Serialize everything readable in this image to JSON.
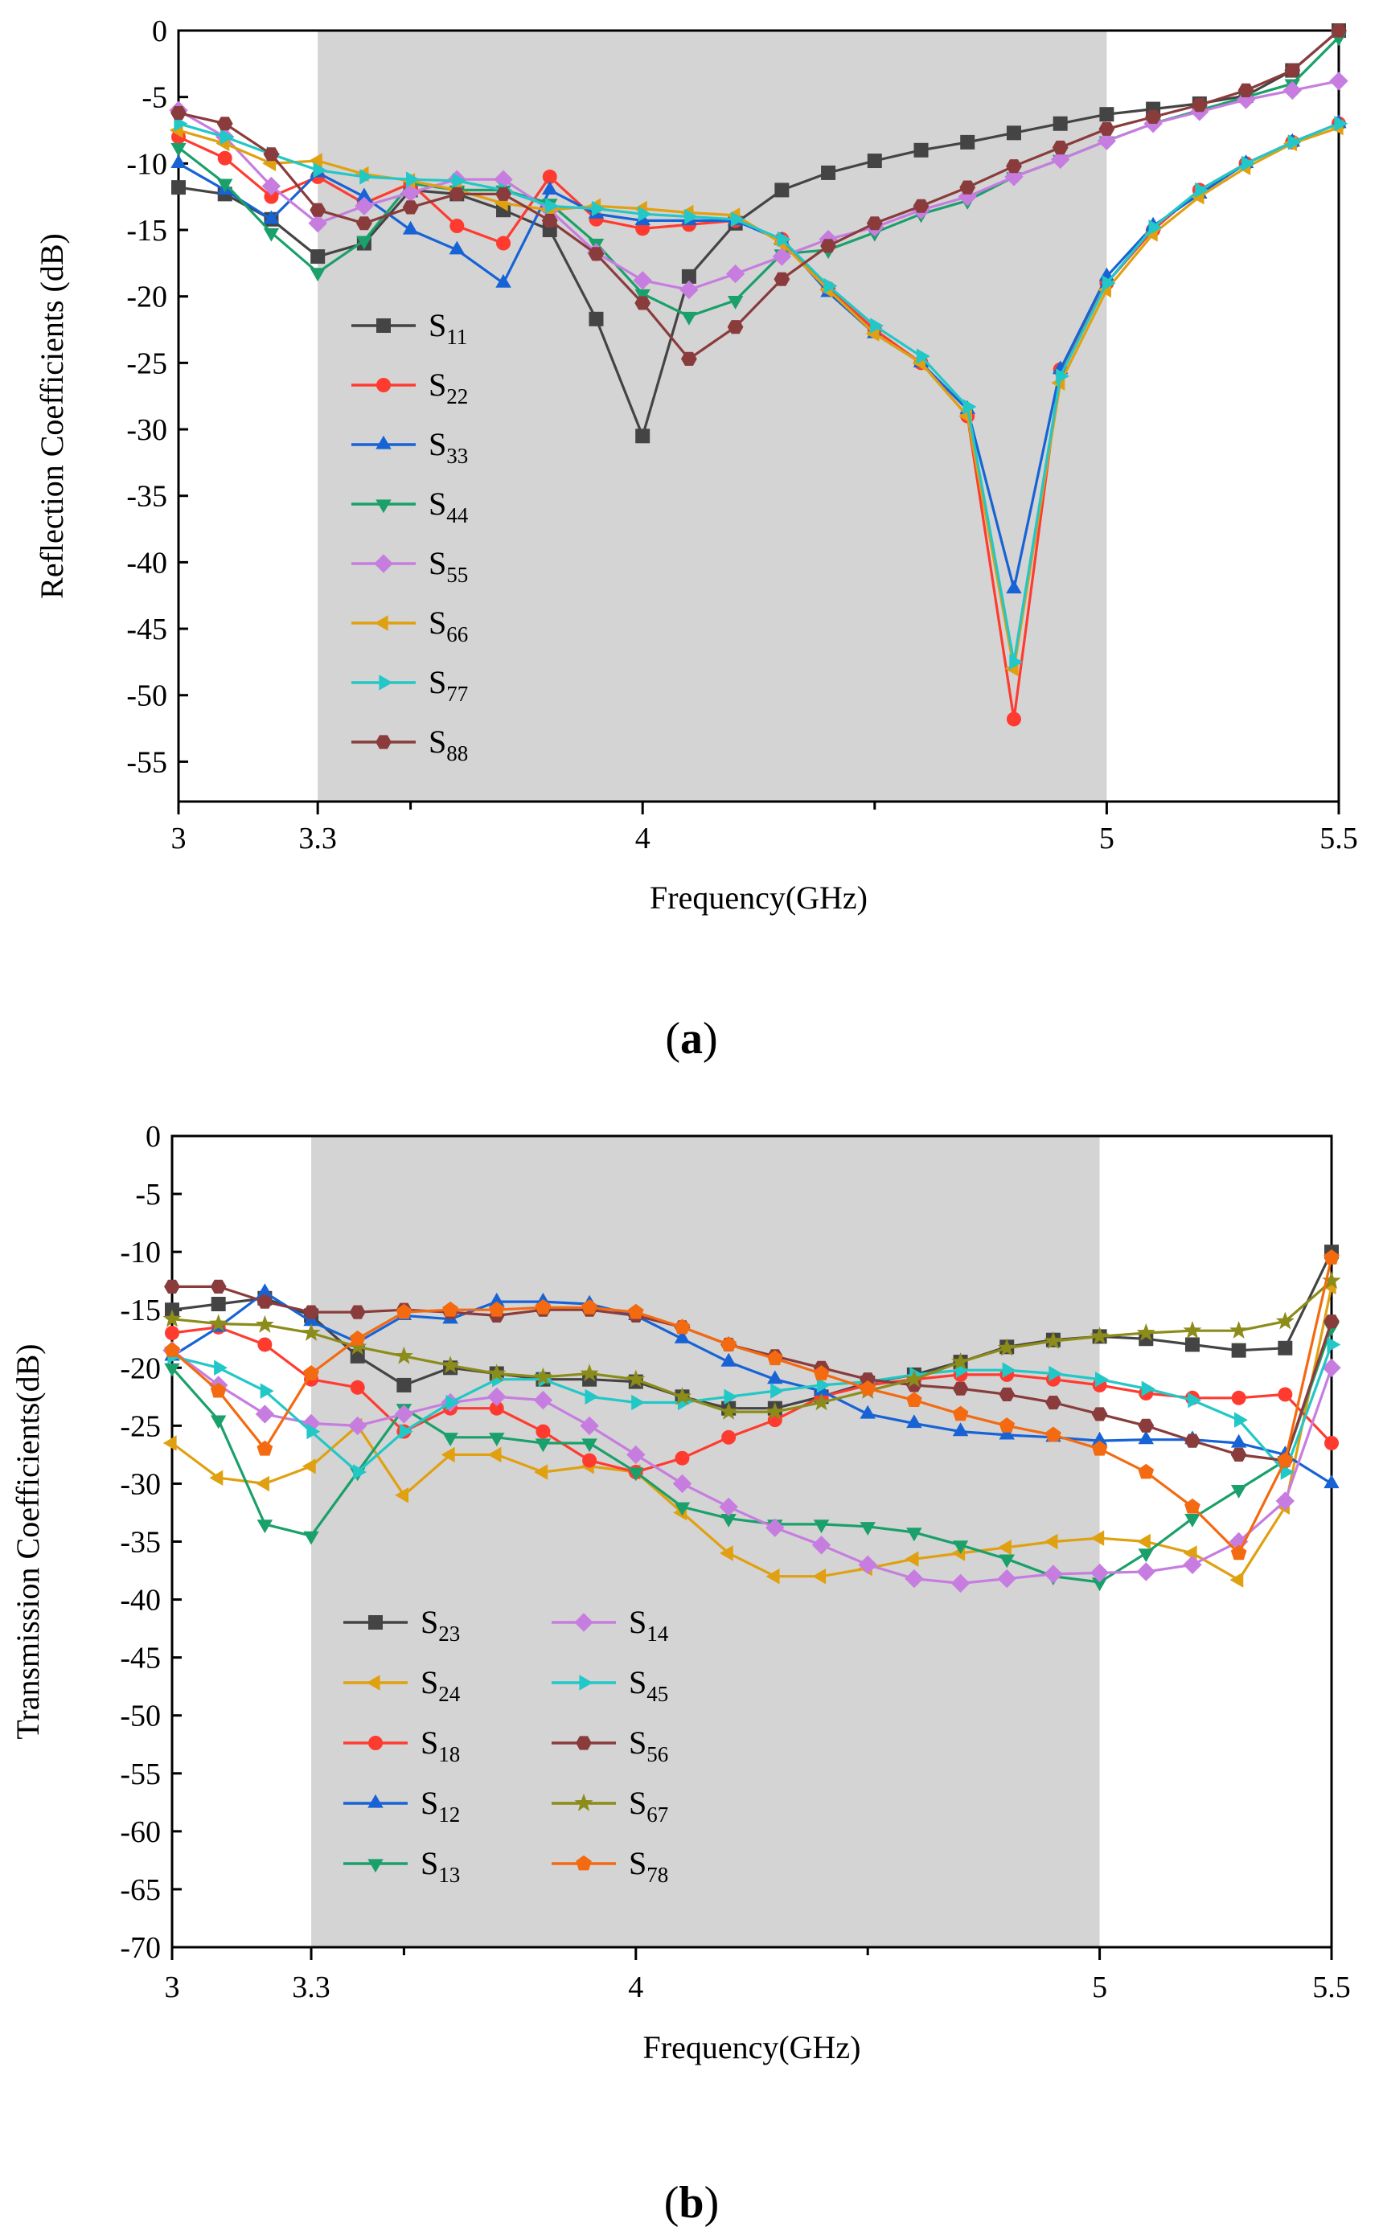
{
  "figure": {
    "caption_a": {
      "open": "(",
      "letter": "a",
      "close": ")"
    },
    "caption_b": {
      "open": "(",
      "letter": "b",
      "close": ")"
    }
  },
  "chart_data": [
    {
      "id": "a",
      "type": "line",
      "xlabel": "Frequency(GHz)",
      "ylabel": "Reflection Coefficients (dB)",
      "xlim": [
        3,
        5.5
      ],
      "ylim": [
        -58,
        0
      ],
      "xticks": [
        3,
        3.3,
        4,
        5,
        5.5
      ],
      "xtick_labels": [
        "3",
        "3.3",
        "4",
        "5",
        "5.5"
      ],
      "minor_xticks": [
        3.5,
        4.5
      ],
      "yticks": [
        0,
        -5,
        -10,
        -15,
        -20,
        -25,
        -30,
        -35,
        -40,
        -45,
        -50,
        -55
      ],
      "ytick_labels": [
        "0",
        "-5",
        "-10",
        "-15",
        "-20",
        "-25",
        "-30",
        "-35",
        "-40",
        "-45",
        "-50",
        "-55"
      ],
      "shaded_band": [
        3.3,
        5
      ],
      "shade_color": "#d4d4d4",
      "legend": {
        "columns": 1
      },
      "x": [
        3.0,
        3.1,
        3.2,
        3.3,
        3.4,
        3.5,
        3.6,
        3.7,
        3.8,
        3.9,
        4.0,
        4.1,
        4.2,
        4.3,
        4.4,
        4.5,
        4.6,
        4.7,
        4.8,
        4.9,
        5.0,
        5.1,
        5.2,
        5.3,
        5.4,
        5.5
      ],
      "series": [
        {
          "name": "S",
          "sub": "11",
          "marker": "square",
          "color": "#444444",
          "values": [
            -11.8,
            -12.3,
            -14.2,
            -17.0,
            -16.0,
            -12.0,
            -12.3,
            -13.5,
            -15.0,
            -21.7,
            -30.5,
            -18.5,
            -14.5,
            -12.0,
            -10.7,
            -9.8,
            -9.0,
            -8.4,
            -7.7,
            -7.0,
            -6.3,
            -5.9,
            -5.5,
            -4.9,
            -3.0,
            0.0
          ]
        },
        {
          "name": "S",
          "sub": "22",
          "marker": "circle",
          "color": "#ff3b30",
          "values": [
            -8.0,
            -9.6,
            -12.5,
            -11.0,
            -13.0,
            -11.5,
            -14.7,
            -16.0,
            -11.0,
            -14.2,
            -14.9,
            -14.6,
            -14.3,
            -15.7,
            -19.4,
            -22.5,
            -25.0,
            -29.0,
            -51.8,
            -25.5,
            -19.0,
            -15.0,
            -12.0,
            -10.0,
            -8.4,
            -7.0
          ]
        },
        {
          "name": "S",
          "sub": "33",
          "marker": "triangle-up",
          "color": "#1763d6",
          "values": [
            -10.0,
            -12.0,
            -14.2,
            -10.7,
            -12.5,
            -15.0,
            -16.5,
            -19.0,
            -12.0,
            -13.8,
            -14.3,
            -14.3,
            -14.3,
            -15.8,
            -19.7,
            -22.8,
            -25.0,
            -28.5,
            -42.0,
            -25.5,
            -18.5,
            -14.7,
            -12.3,
            -10.0,
            -8.4,
            -7.0
          ]
        },
        {
          "name": "S",
          "sub": "44",
          "marker": "triangle-down",
          "color": "#1aa06a",
          "values": [
            -8.8,
            -11.5,
            -15.2,
            -18.2,
            -15.8,
            -11.5,
            -12.0,
            -12.0,
            -13.0,
            -16.0,
            -19.8,
            -21.5,
            -20.3,
            -16.8,
            -16.5,
            -15.2,
            -13.8,
            -12.8,
            -11.0,
            -9.7,
            -8.3,
            -7.0,
            -6.0,
            -5.0,
            -4.0,
            -0.5
          ]
        },
        {
          "name": "S",
          "sub": "55",
          "marker": "diamond",
          "color": "#c77de0",
          "values": [
            -6.0,
            -8.0,
            -11.7,
            -14.5,
            -13.2,
            -12.2,
            -11.2,
            -11.2,
            -13.5,
            -16.7,
            -18.8,
            -19.5,
            -18.3,
            -17.0,
            -15.7,
            -14.8,
            -13.5,
            -12.5,
            -11.0,
            -9.7,
            -8.3,
            -7.0,
            -6.1,
            -5.2,
            -4.5,
            -3.8
          ]
        },
        {
          "name": "S",
          "sub": "66",
          "marker": "triangle-left",
          "color": "#e0a010",
          "values": [
            -7.5,
            -8.5,
            -10.0,
            -9.8,
            -10.8,
            -11.3,
            -12.0,
            -13.0,
            -13.5,
            -13.2,
            -13.4,
            -13.7,
            -13.9,
            -16.0,
            -19.5,
            -22.8,
            -25.0,
            -29.0,
            -48.0,
            -26.5,
            -19.5,
            -15.3,
            -12.5,
            -10.3,
            -8.5,
            -7.3
          ]
        },
        {
          "name": "S",
          "sub": "77",
          "marker": "triangle-right",
          "color": "#22c7c7",
          "values": [
            -7.0,
            -8.0,
            -9.3,
            -10.5,
            -11.0,
            -11.2,
            -11.3,
            -12.0,
            -13.2,
            -13.4,
            -13.8,
            -14.0,
            -14.2,
            -15.7,
            -19.2,
            -22.2,
            -24.5,
            -28.3,
            -47.5,
            -26.0,
            -19.0,
            -14.8,
            -12.0,
            -10.0,
            -8.4,
            -7.0
          ]
        },
        {
          "name": "S",
          "sub": "88",
          "marker": "hexagon",
          "color": "#8a3c3c",
          "values": [
            -6.2,
            -7.0,
            -9.3,
            -13.5,
            -14.5,
            -13.3,
            -12.3,
            -12.3,
            -14.3,
            -16.8,
            -20.5,
            -24.7,
            -22.3,
            -18.7,
            -16.2,
            -14.5,
            -13.2,
            -11.8,
            -10.2,
            -8.8,
            -7.4,
            -6.5,
            -5.6,
            -4.5,
            -3.0,
            0.0
          ]
        }
      ]
    },
    {
      "id": "b",
      "type": "line",
      "xlabel": "Frequency(GHz)",
      "ylabel": "Transmission Coefficients(dB)",
      "xlim": [
        3,
        5.5
      ],
      "ylim": [
        -70,
        0
      ],
      "xticks": [
        3,
        3.3,
        4,
        5,
        5.5
      ],
      "xtick_labels": [
        "3",
        "3.3",
        "4",
        "5",
        "5.5"
      ],
      "minor_xticks": [
        3.5,
        4.5
      ],
      "yticks": [
        0,
        -5,
        -10,
        -15,
        -20,
        -25,
        -30,
        -35,
        -40,
        -45,
        -50,
        -55,
        -60,
        -65,
        -70
      ],
      "ytick_labels": [
        "0",
        "-5",
        "-10",
        "-15",
        "-20",
        "-25",
        "-30",
        "-35",
        "-40",
        "-45",
        "-50",
        "-55",
        "-60",
        "-65",
        "-70"
      ],
      "shaded_band": [
        3.3,
        5
      ],
      "shade_color": "#d4d4d4",
      "legend": {
        "columns": 2
      },
      "x": [
        3.0,
        3.1,
        3.2,
        3.3,
        3.4,
        3.5,
        3.6,
        3.7,
        3.8,
        3.9,
        4.0,
        4.1,
        4.2,
        4.3,
        4.4,
        4.5,
        4.6,
        4.7,
        4.8,
        4.9,
        5.0,
        5.1,
        5.2,
        5.3,
        5.4,
        5.5
      ],
      "series": [
        {
          "name": "S",
          "sub": "23",
          "marker": "square",
          "color": "#444444",
          "values": [
            -15.0,
            -14.5,
            -14.0,
            -15.5,
            -19.0,
            -21.5,
            -20.0,
            -20.5,
            -21.0,
            -21.0,
            -21.2,
            -22.5,
            -23.5,
            -23.5,
            -22.5,
            -21.3,
            -20.6,
            -19.5,
            -18.2,
            -17.6,
            -17.3,
            -17.5,
            -18.0,
            -18.5,
            -18.3,
            -10.0
          ]
        },
        {
          "name": "S",
          "sub": "24",
          "marker": "triangle-left",
          "color": "#e0a010",
          "values": [
            -26.5,
            -29.5,
            -30.0,
            -28.5,
            -25.0,
            -31.0,
            -27.5,
            -27.5,
            -29.0,
            -28.5,
            -29.0,
            -32.5,
            -36.0,
            -38.0,
            -38.0,
            -37.3,
            -36.5,
            -36.0,
            -35.5,
            -35.0,
            -34.7,
            -35.0,
            -36.0,
            -38.3,
            -32.0,
            -13.0
          ]
        },
        {
          "name": "S",
          "sub": "18",
          "marker": "circle",
          "color": "#ff3b30",
          "values": [
            -17.0,
            -16.5,
            -18.0,
            -21.0,
            -21.7,
            -25.5,
            -23.5,
            -23.5,
            -25.5,
            -28.0,
            -29.0,
            -27.8,
            -26.0,
            -24.5,
            -22.5,
            -21.5,
            -21.0,
            -20.6,
            -20.6,
            -21.0,
            -21.5,
            -22.2,
            -22.6,
            -22.6,
            -22.3,
            -26.5
          ]
        },
        {
          "name": "S",
          "sub": "12",
          "marker": "triangle-up",
          "color": "#1763d6",
          "values": [
            -19.0,
            -16.5,
            -13.5,
            -16.0,
            -17.8,
            -15.5,
            -15.8,
            -14.3,
            -14.3,
            -14.5,
            -15.5,
            -17.5,
            -19.5,
            -21.0,
            -22.0,
            -24.0,
            -24.8,
            -25.5,
            -25.8,
            -26.0,
            -26.3,
            -26.2,
            -26.2,
            -26.5,
            -27.5,
            -30.0
          ]
        },
        {
          "name": "S",
          "sub": "13",
          "marker": "triangle-down",
          "color": "#1aa06a",
          "values": [
            -20.0,
            -24.5,
            -33.5,
            -34.5,
            -29.0,
            -23.5,
            -26.0,
            -26.0,
            -26.5,
            -26.5,
            -29.0,
            -32.0,
            -33.0,
            -33.5,
            -33.5,
            -33.7,
            -34.2,
            -35.3,
            -36.5,
            -38.0,
            -38.5,
            -36.0,
            -33.0,
            -30.5,
            -28.0,
            -16.5
          ]
        },
        {
          "name": "S",
          "sub": "14",
          "marker": "diamond",
          "color": "#c77de0",
          "values": [
            -18.5,
            -21.5,
            -24.0,
            -24.8,
            -25.0,
            -24.0,
            -23.0,
            -22.5,
            -22.8,
            -25.0,
            -27.5,
            -30.0,
            -32.0,
            -33.8,
            -35.3,
            -37.0,
            -38.2,
            -38.6,
            -38.2,
            -37.8,
            -37.7,
            -37.6,
            -37.0,
            -35.0,
            -31.5,
            -20.0
          ]
        },
        {
          "name": "S",
          "sub": "45",
          "marker": "triangle-right",
          "color": "#22c7c7",
          "values": [
            -19.0,
            -20.0,
            -22.0,
            -25.5,
            -29.0,
            -25.5,
            -23.0,
            -21.0,
            -21.0,
            -22.5,
            -23.0,
            -23.0,
            -22.5,
            -22.0,
            -21.5,
            -21.2,
            -20.6,
            -20.2,
            -20.2,
            -20.5,
            -21.0,
            -21.8,
            -22.8,
            -24.5,
            -29.0,
            -18.0
          ]
        },
        {
          "name": "S",
          "sub": "56",
          "marker": "hexagon",
          "color": "#8a3c3c",
          "values": [
            -13.0,
            -13.0,
            -14.3,
            -15.2,
            -15.2,
            -15.0,
            -15.2,
            -15.5,
            -15.0,
            -15.0,
            -15.5,
            -16.5,
            -18.0,
            -19.0,
            -20.0,
            -21.0,
            -21.5,
            -21.8,
            -22.3,
            -23.0,
            -24.0,
            -25.0,
            -26.3,
            -27.5,
            -28.0,
            -16.0
          ]
        },
        {
          "name": "S",
          "sub": "67",
          "marker": "star",
          "color": "#8c8c1a",
          "values": [
            -15.8,
            -16.2,
            -16.3,
            -17.0,
            -18.2,
            -19.0,
            -19.8,
            -20.5,
            -20.8,
            -20.5,
            -21.0,
            -22.5,
            -23.8,
            -23.8,
            -23.0,
            -22.0,
            -21.0,
            -19.5,
            -18.3,
            -17.7,
            -17.3,
            -17.0,
            -16.8,
            -16.8,
            -16.0,
            -12.5
          ]
        },
        {
          "name": "S",
          "sub": "78",
          "marker": "pentagon",
          "color": "#f36a10",
          "values": [
            -18.5,
            -22.0,
            -27.0,
            -20.5,
            -17.5,
            -15.2,
            -15.0,
            -15.0,
            -14.8,
            -14.8,
            -15.2,
            -16.5,
            -18.0,
            -19.2,
            -20.5,
            -21.8,
            -22.8,
            -24.0,
            -25.0,
            -25.8,
            -27.0,
            -29.0,
            -32.0,
            -36.0,
            -28.0,
            -10.5
          ]
        }
      ]
    }
  ]
}
